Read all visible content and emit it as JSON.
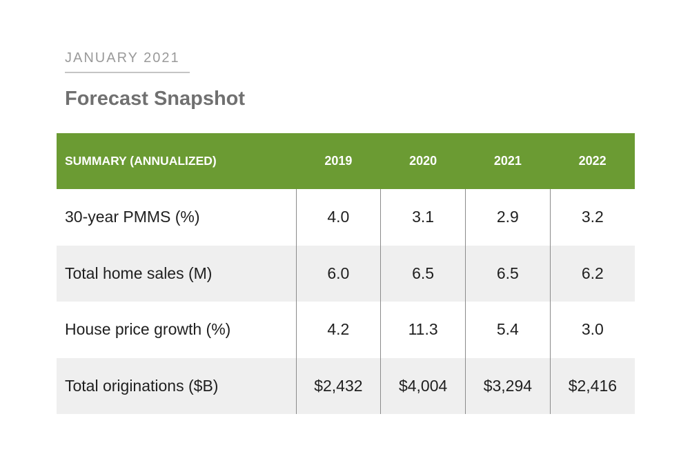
{
  "header": {
    "date_label": "JANUARY 2021",
    "title": "Forecast Snapshot"
  },
  "colors": {
    "header_green": "#6b9b33",
    "row_shade": "#efefef",
    "title_gray": "#707070",
    "date_gray": "#9a9a9a"
  },
  "chart_data": {
    "type": "table",
    "title": "Forecast Snapshot",
    "columns": [
      "SUMMARY (ANNUALIZED)",
      "2019",
      "2020",
      "2021",
      "2022"
    ],
    "rows": [
      {
        "label": "30-year PMMS (%)",
        "values": [
          "4.0",
          "3.1",
          "2.9",
          "3.2"
        ]
      },
      {
        "label": "Total home sales (M)",
        "values": [
          "6.0",
          "6.5",
          "6.5",
          "6.2"
        ]
      },
      {
        "label": "House price growth (%)",
        "values": [
          "4.2",
          "11.3",
          "5.4",
          "3.0"
        ]
      },
      {
        "label": "Total originations ($B)",
        "values": [
          "$2,432",
          "$4,004",
          "$3,294",
          "$2,416"
        ]
      }
    ]
  }
}
